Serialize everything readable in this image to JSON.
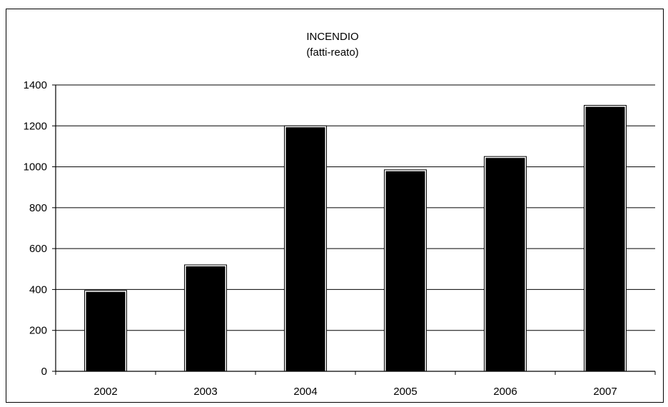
{
  "chart_data": {
    "type": "bar",
    "title": "INCENDIO",
    "subtitle": "(fatti-reato)",
    "xlabel": "",
    "ylabel": "",
    "categories": [
      "2002",
      "2003",
      "2004",
      "2005",
      "2006",
      "2007"
    ],
    "values": [
      390,
      515,
      1195,
      980,
      1045,
      1295
    ],
    "ylim": [
      0,
      1400
    ],
    "yticks": [
      0,
      200,
      400,
      600,
      800,
      1000,
      1200,
      1400
    ],
    "grid": true,
    "legend": "none",
    "bar_color": "#000000"
  }
}
